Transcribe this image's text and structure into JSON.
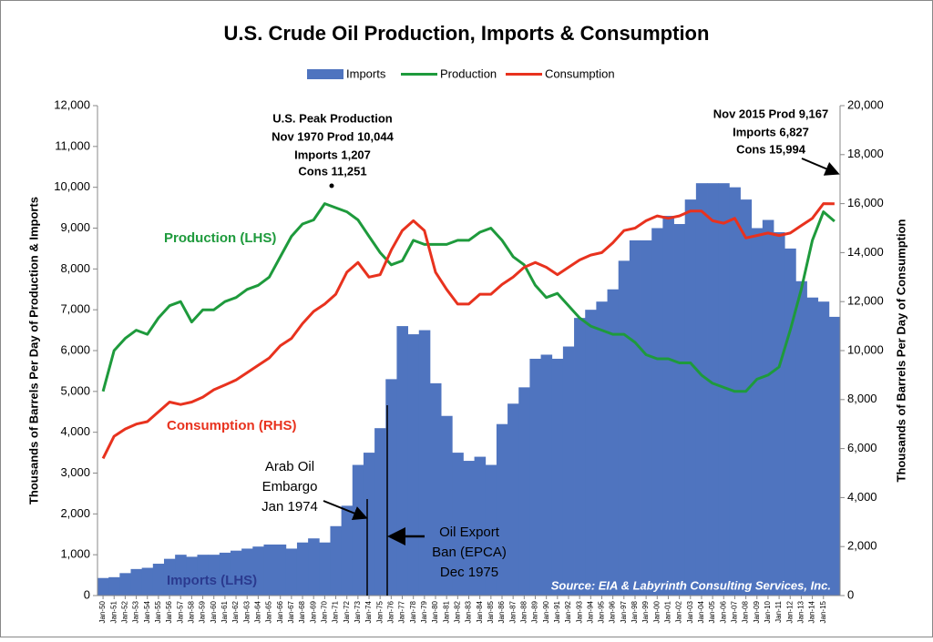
{
  "chart_data": {
    "type": "combo",
    "title": "U.S. Crude Oil Production, Imports & Consumption",
    "y_label": "Thousands of Barrels Per Day of Production & Imports",
    "y2_label": "Thousands of Barrels Per Day of Consumption",
    "legend": "top",
    "grid": false,
    "categories": [
      "Jan-50",
      "Jan-51",
      "Jan-52",
      "Jan-53",
      "Jan-54",
      "Jan-55",
      "Jan-56",
      "Jan-57",
      "Jan-58",
      "Jan-59",
      "Jan-60",
      "Jan-61",
      "Jan-62",
      "Jan-63",
      "Jan-64",
      "Jan-65",
      "Jan-66",
      "Jan-67",
      "Jan-68",
      "Jan-69",
      "Jan-70",
      "Jan-71",
      "Jan-72",
      "Jan-73",
      "Jan-74",
      "Jan-75",
      "Jan-76",
      "Jan-77",
      "Jan-78",
      "Jan-79",
      "Jan-80",
      "Jan-81",
      "Jan-82",
      "Jan-83",
      "Jan-84",
      "Jan-85",
      "Jan-86",
      "Jan-87",
      "Jan-88",
      "Jan-89",
      "Jan-90",
      "Jan-91",
      "Jan-92",
      "Jan-93",
      "Jan-94",
      "Jan-95",
      "Jan-96",
      "Jan-97",
      "Jan-98",
      "Jan-99",
      "Jan-00",
      "Jan-01",
      "Jan-02",
      "Jan-03",
      "Jan-04",
      "Jan-05",
      "Jan-06",
      "Jan-07",
      "Jan-08",
      "Jan-09",
      "Jan-10",
      "Jan-11",
      "Jan-12",
      "Jan-13",
      "Jan-14",
      "Jan-15",
      null
    ],
    "series": [
      {
        "name": "Imports",
        "type": "area",
        "color": "#4f74bf",
        "values": [
          430,
          450,
          550,
          650,
          680,
          780,
          900,
          1000,
          950,
          1000,
          1000,
          1050,
          1100,
          1150,
          1200,
          1250,
          1250,
          1150,
          1300,
          1400,
          1300,
          1700,
          2200,
          3200,
          3500,
          4100,
          5300,
          6600,
          6400,
          6500,
          5200,
          4400,
          3500,
          3300,
          3400,
          3200,
          4200,
          4700,
          5100,
          5800,
          5900,
          5800,
          6100,
          6800,
          7000,
          7200,
          7500,
          8200,
          8700,
          8700,
          9000,
          9300,
          9100,
          9700,
          10100,
          10100,
          10100,
          10000,
          9700,
          9000,
          9200,
          8900,
          8500,
          7700,
          7300,
          7200,
          6827
        ]
      },
      {
        "name": "Production",
        "type": "line",
        "color": "#1e9a3c",
        "values": [
          5000,
          6000,
          6300,
          6500,
          6400,
          6800,
          7100,
          7200,
          6700,
          7000,
          7000,
          7200,
          7300,
          7500,
          7600,
          7800,
          8300,
          8800,
          9100,
          9200,
          9600,
          9500,
          9400,
          9200,
          8800,
          8400,
          8100,
          8200,
          8700,
          8600,
          8600,
          8600,
          8700,
          8700,
          8900,
          9000,
          8700,
          8300,
          8100,
          7600,
          7300,
          7400,
          7100,
          6800,
          6600,
          6500,
          6400,
          6400,
          6200,
          5900,
          5800,
          5800,
          5700,
          5700,
          5400,
          5200,
          5100,
          5000,
          5000,
          5300,
          5400,
          5600,
          6500,
          7500,
          8700,
          9400,
          9167
        ]
      },
      {
        "name": "Consumption",
        "type": "line",
        "axis": "y2",
        "color": "#e8321e",
        "values": [
          5600,
          6500,
          6800,
          7000,
          7100,
          7500,
          7900,
          7800,
          7900,
          8100,
          8400,
          8600,
          8800,
          9100,
          9400,
          9700,
          10200,
          10500,
          11100,
          11600,
          11900,
          12300,
          13200,
          13600,
          13000,
          13100,
          14100,
          14900,
          15300,
          14900,
          13200,
          12500,
          11900,
          11900,
          12300,
          12300,
          12700,
          13000,
          13400,
          13600,
          13400,
          13100,
          13400,
          13700,
          13900,
          14000,
          14400,
          14900,
          15000,
          15300,
          15500,
          15400,
          15500,
          15700,
          15700,
          15300,
          15200,
          15400,
          14600,
          14700,
          14800,
          14700,
          14800,
          15100,
          15400,
          16000,
          15994
        ]
      }
    ],
    "ylim": [
      0,
      12000
    ],
    "yticks": [
      0,
      {
        "value": 1000,
        "label": "1,000"
      },
      {
        "value": 2000,
        "label": "2,000"
      },
      {
        "value": 3000,
        "label": "3,000"
      },
      {
        "value": 4000,
        "label": "4,000"
      },
      {
        "value": 5000,
        "label": "5,000"
      },
      {
        "value": 6000,
        "label": "6,000"
      },
      {
        "value": 7000,
        "label": "7,000"
      },
      {
        "value": 8000,
        "label": "8,000"
      },
      {
        "value": 9000,
        "label": "9,000"
      },
      {
        "value": 10000,
        "label": "10,000"
      },
      {
        "value": 11000,
        "label": "11,000"
      },
      {
        "value": 12000,
        "label": "12,000"
      }
    ],
    "y2lim": [
      0,
      20000
    ],
    "y2ticks": [
      0,
      {
        "value": 2000,
        "label": "2,000"
      },
      {
        "value": 4000,
        "label": "4,000"
      },
      {
        "value": 6000,
        "label": "6,000"
      },
      {
        "value": 8000,
        "label": "8,000"
      },
      {
        "value": 10000,
        "label": "10,000"
      },
      {
        "value": 12000,
        "label": "12,000"
      },
      {
        "value": 14000,
        "label": "14,000"
      },
      {
        "value": 16000,
        "label": "16,000"
      },
      {
        "value": 18000,
        "label": "18,000"
      },
      {
        "value": 20000,
        "label": "20,000"
      }
    ],
    "annotations": [
      {
        "lines": [
          "U.S. Peak Production",
          "Nov 1970 Prod 10,044",
          "Imports 1,207",
          "Cons 11,251"
        ]
      },
      {
        "lines": [
          "Nov 2015 Prod 9,167",
          "Imports 6,827",
          "Cons 15,994"
        ]
      },
      {
        "lines": [
          "Production (LHS)"
        ]
      },
      {
        "lines": [
          "Consumption (RHS)"
        ]
      },
      {
        "lines": [
          "Imports (LHS)"
        ]
      },
      {
        "lines": [
          "Arab Oil",
          "Embargo",
          "Jan 1974"
        ]
      },
      {
        "lines": [
          "Oil Export",
          "Ban (EPCA)",
          "Dec 1975"
        ]
      },
      {
        "lines": [
          "Source: EIA & Labyrinth Consulting Services, Inc."
        ]
      }
    ]
  }
}
